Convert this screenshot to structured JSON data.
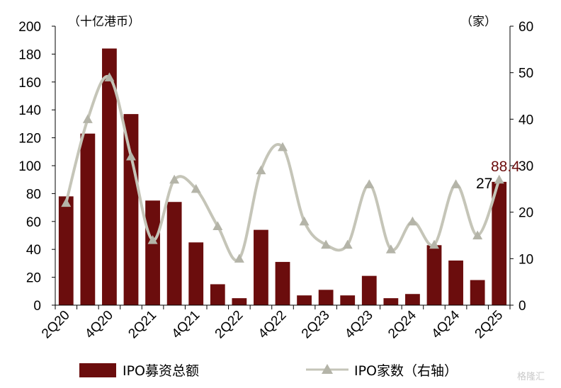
{
  "chart_data": {
    "type": "bar+line",
    "categories": [
      "2Q20",
      "3Q20",
      "4Q20",
      "1Q21",
      "2Q21",
      "3Q21",
      "4Q21",
      "1Q22",
      "2Q22",
      "3Q22",
      "4Q22",
      "1Q23",
      "2Q23",
      "3Q23",
      "4Q23",
      "1Q24",
      "2Q24",
      "3Q24",
      "4Q24",
      "1Q25",
      "2Q25"
    ],
    "x_tick_labels": [
      "2Q20",
      "4Q20",
      "2Q21",
      "4Q21",
      "2Q22",
      "4Q22",
      "2Q23",
      "4Q23",
      "2Q24",
      "4Q24",
      "2Q25"
    ],
    "series": [
      {
        "name": "IPO募资总额",
        "type": "bar",
        "axis": "left",
        "color": "#6b0d0d",
        "values": [
          78,
          123,
          184,
          137,
          75,
          74,
          45,
          15,
          5,
          54,
          31,
          7,
          11,
          7,
          21,
          5,
          8,
          43,
          32,
          18,
          88.4
        ]
      },
      {
        "name": "IPO家数（右轴）",
        "type": "line",
        "axis": "right",
        "color": "#c5c5b8",
        "values": [
          22,
          40,
          49,
          32,
          14,
          27,
          25,
          17,
          10,
          29,
          34,
          18,
          13,
          13,
          26,
          12,
          18,
          13,
          26,
          15,
          27
        ]
      }
    ],
    "left_axis": {
      "unit_label": "（十亿港币）",
      "ylim": [
        0,
        200
      ],
      "ticks": [
        "0",
        "20",
        "40",
        "60",
        "80",
        "100",
        "120",
        "140",
        "160",
        "180",
        "200"
      ]
    },
    "right_axis": {
      "unit_label": "（家）",
      "ylim": [
        0,
        60
      ],
      "ticks": [
        "0",
        "10",
        "20",
        "30",
        "40",
        "50",
        "60"
      ]
    },
    "annotations": {
      "last_bar_label": "88.4",
      "last_line_label": "27"
    },
    "legend_position": "bottom",
    "grid": false,
    "watermark": "格隆汇"
  }
}
